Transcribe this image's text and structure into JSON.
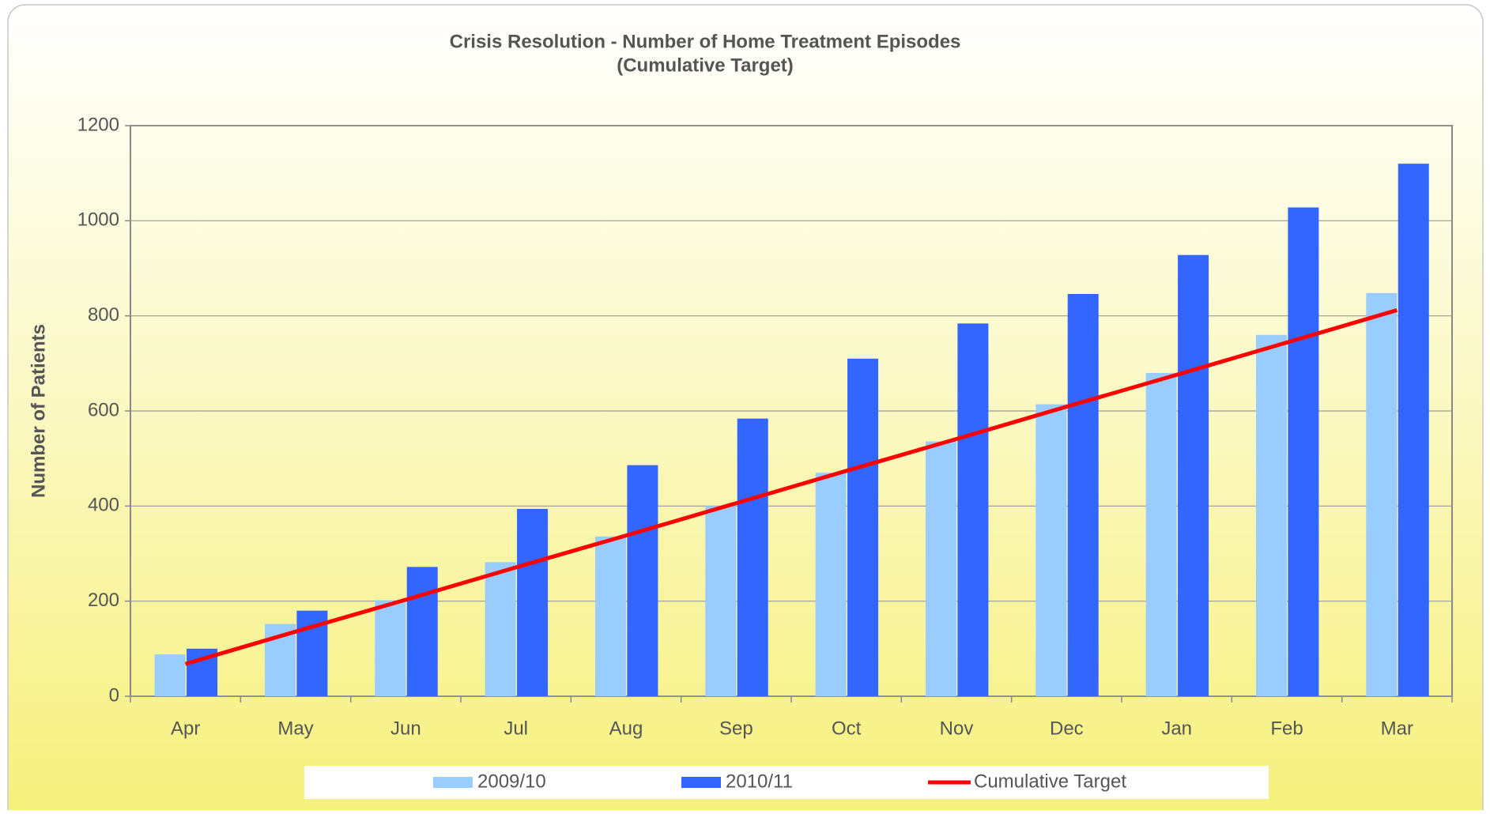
{
  "chart_data": {
    "type": "bar",
    "title": "Crisis Resolution - Number of Home Treatment Episodes",
    "subtitle": "(Cumulative Target)",
    "y_label": "Number of Patients",
    "categories": [
      "Apr",
      "May",
      "Jun",
      "Jul",
      "Aug",
      "Sep",
      "Oct",
      "Nov",
      "Dec",
      "Jan",
      "Feb",
      "Mar"
    ],
    "series": [
      {
        "name": "2009/10",
        "type": "bar",
        "color": "#99ccff",
        "values": [
          88,
          152,
          202,
          282,
          336,
          400,
          470,
          536,
          614,
          680,
          760,
          848
        ]
      },
      {
        "name": "2010/11",
        "type": "bar",
        "color": "#3366ff",
        "values": [
          100,
          180,
          272,
          394,
          486,
          584,
          710,
          784,
          846,
          928,
          1028,
          1120
        ]
      },
      {
        "name": "Cumulative Target",
        "type": "line",
        "color": "#ff0000",
        "values": [
          68,
          136,
          203,
          271,
          338,
          406,
          474,
          541,
          609,
          676,
          744,
          812
        ]
      }
    ],
    "ylim": [
      0,
      1200
    ],
    "yticks": [
      0,
      200,
      400,
      600,
      800,
      1000,
      1200
    ],
    "grid": true,
    "legend": "bottom"
  }
}
